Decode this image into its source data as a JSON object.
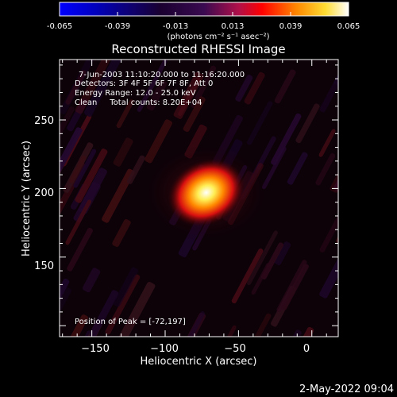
{
  "colorbar": {
    "tick_labels": [
      "-0.065",
      "-0.039",
      "-0.013",
      "0.013",
      "0.039",
      "0.065"
    ],
    "units_label": "(photons cm⁻² s⁻¹ asec⁻²)",
    "range": [
      -0.065,
      0.065
    ],
    "colors": [
      "#0000ff",
      "#000000",
      "#7a1fa0",
      "#ff0000",
      "#ff9900",
      "#ffffff"
    ]
  },
  "chart_data": {
    "type": "heatmap",
    "title": "Reconstructed RHESSI Image",
    "xlabel": "Heliocentric X (arcsec)",
    "ylabel": "Heliocentric Y (arcsec)",
    "xlim": [
      -172,
      18
    ],
    "ylim": [
      92,
      294
    ],
    "x_ticks": [
      -150,
      -100,
      -50,
      0
    ],
    "x_tick_labels": [
      "−150",
      "−100",
      "−50",
      "0"
    ],
    "y_ticks": [
      150,
      200,
      250
    ],
    "y_tick_labels": [
      "150",
      "200",
      "250"
    ],
    "annotations": [
      "7-Jun-2003 11:10:20.000 to 11:16:20.000",
      "Detectors: 3F 4F 5F 6F 7F 8F, Att 0",
      "Energy Range: 12.0 - 25.0 keV",
      "Clean     Total counts: 8.20E+04"
    ],
    "peak_label": "Position of Peak = [-72,197]",
    "peak": {
      "x": -72,
      "y": 197,
      "value": 0.065
    }
  },
  "footer": {
    "date": "2-May-2022 09:04"
  }
}
